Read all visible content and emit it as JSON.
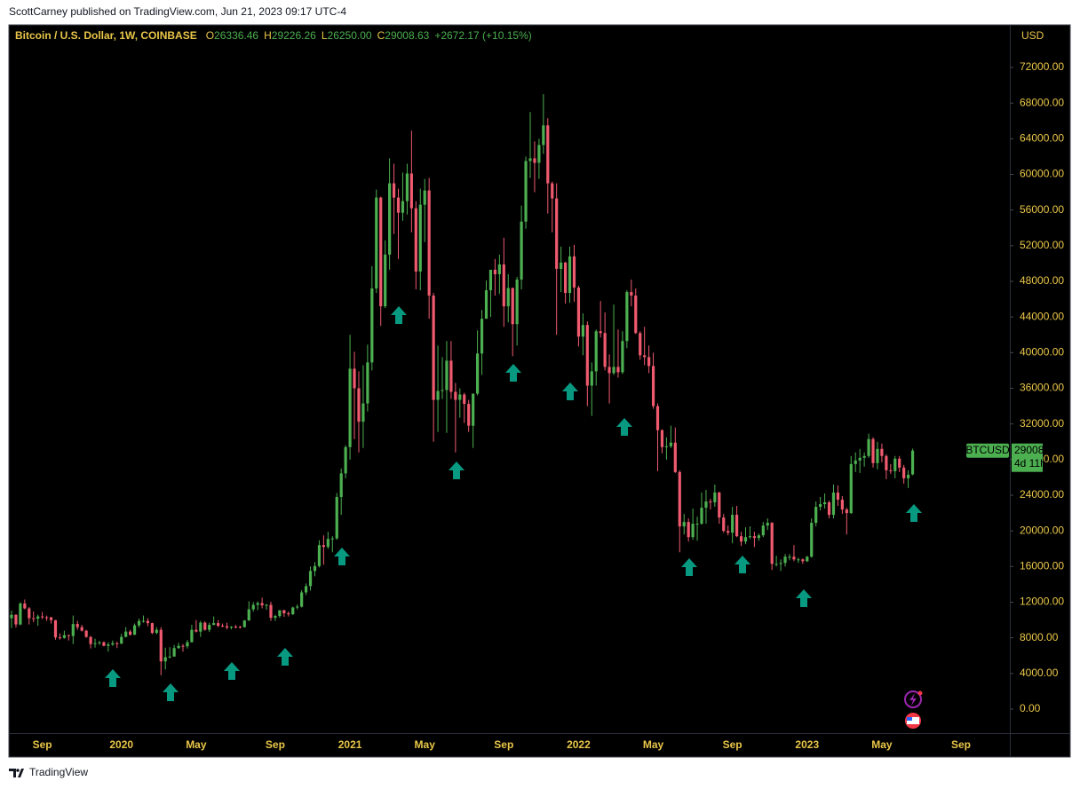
{
  "chart_data": {
    "type": "candlestick",
    "publisher": "ScottCarney published on TradingView.com, Jun 21, 2023 09:17 UTC-4",
    "title": "Bitcoin / U.S. Dollar, 1W, COINBASE",
    "header_values": [
      {
        "label": "O",
        "value": "26336.46"
      },
      {
        "label": "H",
        "value": "29226.26"
      },
      {
        "label": "L",
        "value": "26250.00"
      },
      {
        "label": "C",
        "value": "29008.63"
      }
    ],
    "change": "+2672.17 (+10.15%)",
    "currency": "USD",
    "symbol": "BTCUSD",
    "countdown": "4d 11h",
    "brand": "TradingView",
    "up_color": "#4caf50",
    "down_color": "#ef5a6f",
    "ylim": [
      -5378,
      76780
    ],
    "yticks": [
      {
        "value": 0,
        "label": "0.00"
      },
      {
        "value": 4000,
        "label": "4000.00"
      },
      {
        "value": 8000,
        "label": "8000.00"
      },
      {
        "value": 12000,
        "label": "12000.00"
      },
      {
        "value": 16000,
        "label": "16000.00"
      },
      {
        "value": 20000,
        "label": "20000.00"
      },
      {
        "value": 24000,
        "label": "24000.00"
      },
      {
        "value": 28000,
        "label": "28000.00"
      },
      {
        "value": 32000,
        "label": "32000.00"
      },
      {
        "value": 36000,
        "label": "36000.00"
      },
      {
        "value": 40000,
        "label": "40000.00"
      },
      {
        "value": 44000,
        "label": "44000.00"
      },
      {
        "value": 48000,
        "label": "48000.00"
      },
      {
        "value": 52000,
        "label": "52000.00"
      },
      {
        "value": 56000,
        "label": "56000.00"
      },
      {
        "value": 60000,
        "label": "60000.00"
      },
      {
        "value": 64000,
        "label": "64000.00"
      },
      {
        "value": 68000,
        "label": "68000.00"
      },
      {
        "value": 72000,
        "label": "72000.00"
      }
    ],
    "categories": [
      null,
      null,
      null,
      null,
      null,
      null,
      null,
      "Sep",
      null,
      null,
      null,
      null,
      null,
      null,
      null,
      null,
      null,
      null,
      null,
      null,
      null,
      null,
      null,
      null,
      null,
      "2020",
      null,
      null,
      null,
      null,
      null,
      null,
      null,
      null,
      null,
      null,
      null,
      null,
      null,
      null,
      null,
      null,
      "May",
      null,
      null,
      null,
      null,
      null,
      null,
      null,
      null,
      null,
      null,
      null,
      null,
      null,
      null,
      null,
      null,
      null,
      "Sep",
      null,
      null,
      null,
      null,
      null,
      null,
      null,
      null,
      null,
      null,
      null,
      null,
      null,
      null,
      null,
      null,
      "2021",
      null,
      null,
      null,
      null,
      null,
      null,
      null,
      null,
      null,
      null,
      null,
      null,
      null,
      null,
      null,
      null,
      "May",
      null,
      null,
      null,
      null,
      null,
      null,
      null,
      null,
      null,
      null,
      null,
      null,
      null,
      null,
      null,
      null,
      null,
      "Sep",
      null,
      null,
      null,
      null,
      null,
      null,
      null,
      null,
      null,
      null,
      null,
      null,
      null,
      null,
      null,
      null,
      "2022",
      null,
      null,
      null,
      null,
      null,
      null,
      null,
      null,
      null,
      null,
      null,
      null,
      null,
      null,
      null,
      null,
      "May",
      null,
      null,
      null,
      null,
      null,
      null,
      null,
      null,
      null,
      null,
      null,
      null,
      null,
      null,
      null,
      null,
      null,
      "Sep",
      null,
      null,
      null,
      null,
      null,
      null,
      null,
      null,
      null,
      null,
      null,
      null,
      null,
      null,
      null,
      null,
      "2023",
      null,
      null,
      null,
      null,
      null,
      null,
      null,
      null,
      null,
      null,
      null,
      null,
      null,
      null,
      null,
      null,
      "May",
      null,
      null,
      null,
      null,
      null,
      null,
      null,
      null,
      null,
      null,
      null,
      null,
      null,
      null,
      null,
      null,
      null,
      "Sep"
    ],
    "open": [
      10200,
      10580,
      9500,
      11850,
      11300,
      10200,
      10150,
      10400,
      10310,
      10300,
      9980,
      8050,
      7990,
      8300,
      8200,
      9550,
      9200,
      8800,
      8100,
      7300,
      7400,
      7500,
      7100,
      7250,
      7400,
      7350,
      8100,
      8700,
      8350,
      9400,
      9900,
      9900,
      9650,
      8550,
      8900,
      5350,
      5830,
      5900,
      6850,
      7100,
      7050,
      7500,
      8900,
      8700,
      9700,
      8900,
      9450,
      9650,
      9350,
      9300,
      9150,
      9250,
      9230,
      9200,
      9950,
      11200,
      11700,
      11900,
      11650,
      11700,
      10250,
      10450,
      11100,
      10750,
      10650,
      11400,
      11500,
      13100,
      13800,
      15500,
      16050,
      18400,
      18200,
      19100,
      19150,
      23800,
      26450,
      29400,
      38200,
      36000,
      32250,
      34300,
      38900,
      47200,
      57400,
      45200,
      51000,
      59000,
      57400,
      55700,
      57000,
      60100,
      56200,
      49100,
      56600,
      58200,
      46400,
      34700,
      35700,
      35800,
      39100,
      35600,
      34700,
      35300,
      34250,
      31800,
      35400,
      39900,
      43800,
      47000,
      49300,
      48800,
      49900,
      45200,
      47250,
      43200,
      48200,
      54700,
      61500,
      61800,
      61300,
      63300,
      65500,
      59000,
      57300,
      49400,
      50100,
      46700,
      50800,
      47300,
      41800,
      43100,
      36300,
      37900,
      42400,
      42200,
      38400,
      37700,
      38400,
      37800,
      41300,
      46800,
      46400,
      42200,
      39700,
      39500,
      38500,
      34000,
      31300,
      29400,
      29500,
      29900,
      26600,
      20500,
      21000,
      19300,
      20800,
      20800,
      22600,
      23300,
      23200,
      24300,
      21500,
      20000,
      19800,
      21800,
      19400,
      18800,
      19300,
      19400,
      19200,
      19500,
      20600,
      20900,
      16300,
      16300,
      16400,
      17100,
      17100,
      16800,
      16800,
      16600,
      17100,
      20900,
      22700,
      23000,
      23200,
      21800,
      24300,
      23500,
      22400,
      22000,
      27500,
      27900,
      28200,
      28400,
      30300,
      27600,
      29200,
      28400,
      26800,
      26700,
      28100,
      27100,
      25900,
      26336.46,
      null,
      null,
      null,
      null,
      null,
      null,
      null,
      null,
      null,
      null,
      null
    ],
    "high": [
      11050,
      10650,
      12000,
      12300,
      11450,
      10950,
      10600,
      10900,
      10500,
      10350,
      10000,
      8500,
      8800,
      8350,
      10500,
      9900,
      9450,
      8900,
      8200,
      7900,
      7650,
      7600,
      7500,
      7700,
      7550,
      8450,
      9200,
      8900,
      9600,
      10150,
      10500,
      10200,
      9700,
      9200,
      9200,
      6900,
      6950,
      7200,
      7450,
      7300,
      7750,
      9450,
      10000,
      9900,
      9850,
      9700,
      10400,
      9990,
      9600,
      9700,
      9300,
      9450,
      9350,
      10000,
      12100,
      12000,
      12100,
      12500,
      11800,
      12050,
      10600,
      11100,
      11150,
      10950,
      11500,
      11750,
      13350,
      14100,
      16000,
      16500,
      18950,
      19500,
      19900,
      19400,
      24250,
      27000,
      29600,
      42000,
      40100,
      37900,
      38600,
      40900,
      49700,
      58300,
      57500,
      52600,
      61800,
      61200,
      58400,
      60200,
      61200,
      64900,
      57000,
      58400,
      59500,
      59600,
      46700,
      40800,
      39500,
      41300,
      41300,
      36600,
      36000,
      35500,
      34700,
      35400,
      42500,
      44800,
      48100,
      49300,
      50500,
      51000,
      52900,
      48800,
      47300,
      48500,
      56500,
      62000,
      67000,
      63700,
      64000,
      69000,
      66300,
      59200,
      59000,
      51900,
      50200,
      51900,
      52100,
      47500,
      44400,
      43500,
      38900,
      42600,
      45800,
      44500,
      39800,
      45400,
      42600,
      42400,
      47000,
      48200,
      47200,
      42400,
      42900,
      40800,
      40000,
      34300,
      31400,
      30500,
      31800,
      31600,
      26800,
      21900,
      21400,
      22500,
      21600,
      24300,
      24600,
      23600,
      25200,
      24400,
      21900,
      20600,
      22700,
      22800,
      19900,
      20400,
      20500,
      19900,
      19700,
      21000,
      21400,
      21000,
      17200,
      16800,
      17400,
      17400,
      18400,
      17000,
      16900,
      17200,
      21400,
      23300,
      23800,
      24200,
      23400,
      25200,
      25100,
      23900,
      22600,
      28400,
      28800,
      29200,
      28800,
      30900,
      30500,
      30000,
      29800,
      28600,
      27500,
      28400,
      28400,
      27400,
      26800,
      29226.26,
      null,
      null,
      null,
      null,
      null,
      null,
      null,
      null,
      null,
      null,
      null
    ],
    "low": [
      9100,
      9150,
      9400,
      11200,
      9500,
      9750,
      9350,
      10100,
      9900,
      9600,
      7800,
      7800,
      7900,
      7700,
      7300,
      8900,
      8700,
      8000,
      6800,
      6900,
      7200,
      7050,
      6450,
      7100,
      6850,
      7300,
      8050,
      8250,
      8300,
      9150,
      9700,
      9300,
      8400,
      8400,
      3800,
      4450,
      5700,
      5900,
      6750,
      6450,
      6800,
      7500,
      8600,
      8100,
      8800,
      8650,
      9400,
      9200,
      9200,
      8950,
      8950,
      9050,
      9050,
      9150,
      9900,
      10950,
      11100,
      11300,
      11150,
      9900,
      9900,
      10250,
      10350,
      10400,
      10550,
      11200,
      11400,
      12800,
      13300,
      14900,
      15900,
      16200,
      18000,
      17600,
      19000,
      21800,
      25900,
      28000,
      30300,
      28800,
      29300,
      33400,
      38000,
      46700,
      43000,
      45000,
      49300,
      53300,
      50500,
      54800,
      55500,
      53500,
      47100,
      47000,
      52400,
      43800,
      30000,
      31100,
      34800,
      31000,
      34800,
      28800,
      32700,
      32100,
      31100,
      29300,
      35200,
      37500,
      43800,
      44000,
      46400,
      46600,
      42900,
      43400,
      39600,
      40800,
      47100,
      53900,
      59600,
      58000,
      59500,
      62300,
      55600,
      53500,
      42000,
      46800,
      45500,
      45600,
      45700,
      40700,
      39700,
      34000,
      32900,
      36300,
      41700,
      38000,
      34300,
      37500,
      37200,
      37600,
      40500,
      45200,
      42100,
      39200,
      38600,
      37700,
      33700,
      26700,
      28700,
      28000,
      29300,
      26500,
      17600,
      19600,
      18800,
      19000,
      18900,
      20700,
      20800,
      22400,
      22700,
      20800,
      19800,
      19500,
      18600,
      19300,
      18300,
      18500,
      19100,
      18200,
      18900,
      19300,
      20100,
      15600,
      16000,
      15500,
      16000,
      16700,
      16600,
      16400,
      16300,
      16500,
      17000,
      20500,
      22300,
      22500,
      21400,
      21400,
      22800,
      21900,
      19600,
      21900,
      26600,
      26500,
      27200,
      28200,
      27100,
      26900,
      27700,
      25800,
      26400,
      25900,
      26600,
      25300,
      24800,
      26250,
      null,
      null,
      null,
      null,
      null,
      null,
      null,
      null,
      null,
      null,
      null
    ],
    "close": [
      10580,
      9500,
      11850,
      11300,
      10200,
      10150,
      10400,
      10310,
      10300,
      9980,
      8050,
      7990,
      8300,
      8200,
      9550,
      9200,
      8800,
      8100,
      7300,
      7400,
      7500,
      7100,
      7250,
      7400,
      7350,
      8100,
      8700,
      8350,
      9400,
      9900,
      9900,
      9650,
      8550,
      8900,
      5350,
      5830,
      5900,
      6850,
      7100,
      7050,
      7500,
      8900,
      8700,
      9700,
      8900,
      9450,
      9650,
      9350,
      9300,
      9150,
      9250,
      9230,
      9200,
      9950,
      11200,
      11700,
      11900,
      11650,
      11700,
      10250,
      10450,
      11100,
      10750,
      10650,
      11400,
      11500,
      13100,
      13800,
      15500,
      16050,
      18400,
      18200,
      19100,
      19150,
      23800,
      26450,
      29400,
      38200,
      36000,
      32250,
      34300,
      38900,
      47200,
      57400,
      45200,
      51000,
      59000,
      57400,
      55700,
      57000,
      60100,
      56200,
      49100,
      56600,
      58200,
      46400,
      34700,
      35700,
      35800,
      39100,
      35600,
      34700,
      35300,
      34250,
      31800,
      35400,
      39900,
      43800,
      47000,
      49300,
      48800,
      49900,
      45200,
      47250,
      43200,
      48200,
      54700,
      61500,
      61800,
      61300,
      63300,
      65500,
      59000,
      57300,
      49400,
      50100,
      46700,
      50800,
      47300,
      41800,
      43100,
      36300,
      37900,
      42400,
      42200,
      38400,
      37700,
      38400,
      37800,
      41300,
      46800,
      46400,
      42200,
      39700,
      39500,
      38500,
      34000,
      31300,
      29400,
      29500,
      29900,
      26600,
      20500,
      21000,
      19300,
      20800,
      20800,
      22600,
      23300,
      23200,
      24300,
      21500,
      20000,
      19800,
      21800,
      19400,
      18800,
      19300,
      19400,
      19200,
      19500,
      20600,
      20900,
      16300,
      16300,
      16400,
      17100,
      17100,
      16800,
      16800,
      16600,
      17100,
      20900,
      22700,
      23000,
      23200,
      21800,
      24300,
      23500,
      22400,
      22000,
      27500,
      27900,
      28200,
      28400,
      30300,
      27600,
      29200,
      28400,
      26800,
      26700,
      28100,
      27100,
      25900,
      26300,
      29008.63,
      null,
      null,
      null,
      null,
      null,
      null,
      null,
      null,
      null,
      null,
      null
    ]
  }
}
